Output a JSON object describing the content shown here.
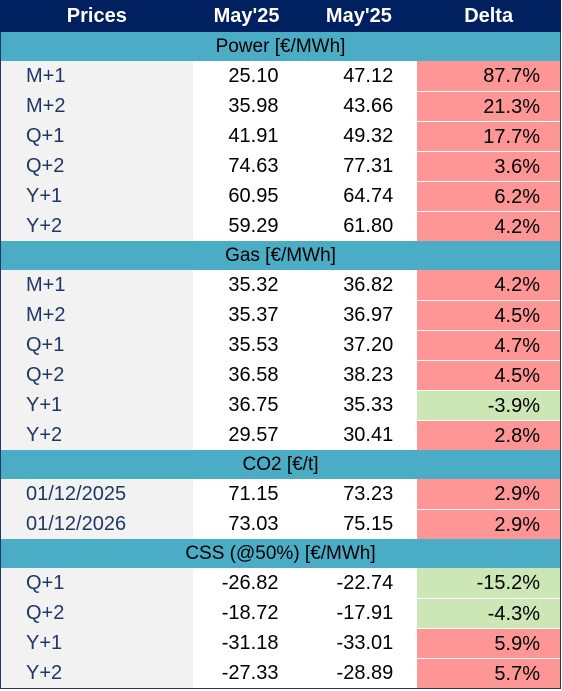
{
  "header": {
    "prices": "Prices",
    "col1": "May'25",
    "col2": "May'25",
    "delta": "Delta"
  },
  "sections": [
    {
      "title": "Power [€/MWh]",
      "rows": [
        {
          "label": "M+1",
          "v1": "25.10",
          "v2": "47.12",
          "delta": "87.7%",
          "sign": "pos"
        },
        {
          "label": "M+2",
          "v1": "35.98",
          "v2": "43.66",
          "delta": "21.3%",
          "sign": "pos"
        },
        {
          "label": "Q+1",
          "v1": "41.91",
          "v2": "49.32",
          "delta": "17.7%",
          "sign": "pos"
        },
        {
          "label": "Q+2",
          "v1": "74.63",
          "v2": "77.31",
          "delta": "3.6%",
          "sign": "pos"
        },
        {
          "label": "Y+1",
          "v1": "60.95",
          "v2": "64.74",
          "delta": "6.2%",
          "sign": "pos"
        },
        {
          "label": "Y+2",
          "v1": "59.29",
          "v2": "61.80",
          "delta": "4.2%",
          "sign": "pos"
        }
      ]
    },
    {
      "title": "Gas [€/MWh]",
      "rows": [
        {
          "label": "M+1",
          "v1": "35.32",
          "v2": "36.82",
          "delta": "4.2%",
          "sign": "pos"
        },
        {
          "label": "M+2",
          "v1": "35.37",
          "v2": "36.97",
          "delta": "4.5%",
          "sign": "pos"
        },
        {
          "label": "Q+1",
          "v1": "35.53",
          "v2": "37.20",
          "delta": "4.7%",
          "sign": "pos"
        },
        {
          "label": "Q+2",
          "v1": "36.58",
          "v2": "38.23",
          "delta": "4.5%",
          "sign": "pos"
        },
        {
          "label": "Y+1",
          "v1": "36.75",
          "v2": "35.33",
          "delta": "-3.9%",
          "sign": "neg"
        },
        {
          "label": "Y+2",
          "v1": "29.57",
          "v2": "30.41",
          "delta": "2.8%",
          "sign": "pos"
        }
      ]
    },
    {
      "title": "CO2 [€/t]",
      "rows": [
        {
          "label": "01/12/2025",
          "v1": "71.15",
          "v2": "73.23",
          "delta": "2.9%",
          "sign": "pos"
        },
        {
          "label": "01/12/2026",
          "v1": "73.03",
          "v2": "75.15",
          "delta": "2.9%",
          "sign": "pos"
        }
      ]
    },
    {
      "title": "CSS (@50%) [€/MWh]",
      "rows": [
        {
          "label": "Q+1",
          "v1": "-26.82",
          "v2": "-22.74",
          "delta": "-15.2%",
          "sign": "neg"
        },
        {
          "label": "Q+2",
          "v1": "-18.72",
          "v2": "-17.91",
          "delta": "-4.3%",
          "sign": "neg"
        },
        {
          "label": "Y+1",
          "v1": "-31.18",
          "v2": "-33.01",
          "delta": "5.9%",
          "sign": "pos"
        },
        {
          "label": "Y+2",
          "v1": "-27.33",
          "v2": "-28.89",
          "delta": "5.7%",
          "sign": "pos"
        }
      ]
    }
  ],
  "colors": {
    "header_bg": "#002060",
    "section_bg": "#4bacc6",
    "positive_delta": "#ff9696",
    "negative_delta": "#cde6b5",
    "label_bg": "#f2f2f2",
    "label_text": "#1f3864"
  }
}
